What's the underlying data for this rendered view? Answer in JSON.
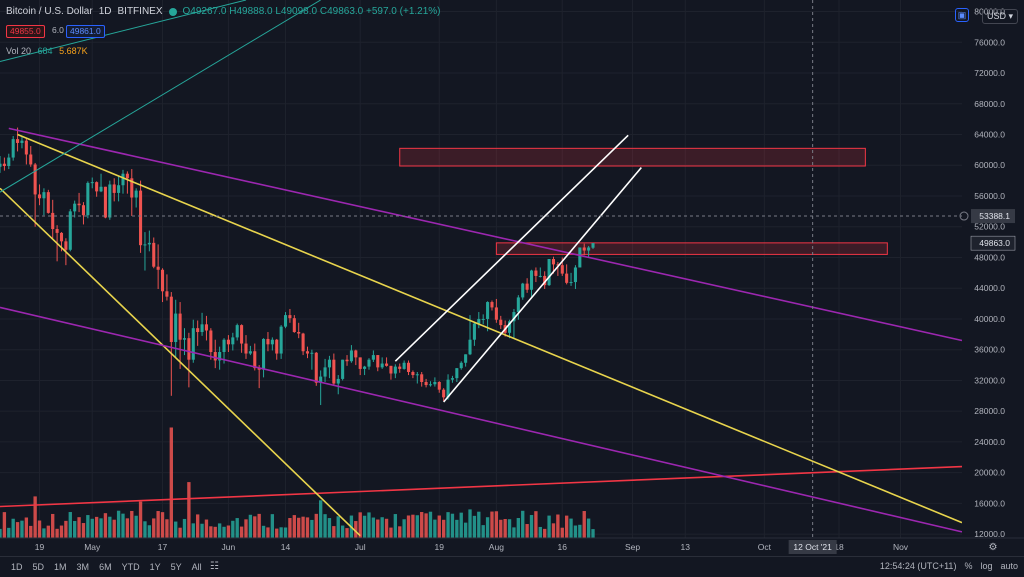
{
  "header": {
    "symbol": "Bitcoin / U.S. Dollar",
    "interval": "1D",
    "exchange": "BITFINEX",
    "ohlc": "O49267.0  H49888.0  L49098.0  C49863.0 +597.0 (+1.21%)",
    "sell_price": "49855.0",
    "spread": "6.0",
    "buy_price": "49861.0",
    "volume_label": "Vol 20",
    "volume_value": "684",
    "volume_ma": "5.687K"
  },
  "top_right": {
    "currency": "USD",
    "camera_icon": "camera-icon"
  },
  "bottom_bar": {
    "timeframes": [
      "1D",
      "5D",
      "1M",
      "3M",
      "6M",
      "YTD",
      "1Y",
      "5Y",
      "All"
    ],
    "time": "12:54:24 (UTC+11)",
    "percent": "%",
    "log": "log",
    "auto": "auto"
  },
  "chart_data": {
    "type": "candlestick",
    "x_axis": {
      "ticks": [
        {
          "label": "19",
          "date": "2021-04-19"
        },
        {
          "label": "May",
          "date": "2021-05-01"
        },
        {
          "label": "17",
          "date": "2021-05-17"
        },
        {
          "label": "Jun",
          "date": "2021-06-01"
        },
        {
          "label": "14",
          "date": "2021-06-14"
        },
        {
          "label": "Jul",
          "date": "2021-07-01"
        },
        {
          "label": "19",
          "date": "2021-07-19"
        },
        {
          "label": "Aug",
          "date": "2021-08-01"
        },
        {
          "label": "16",
          "date": "2021-08-16"
        },
        {
          "label": "Sep",
          "date": "2021-09-01"
        },
        {
          "label": "13",
          "date": "2021-09-13"
        },
        {
          "label": "Oct",
          "date": "2021-10-01"
        },
        {
          "label": "18",
          "date": "2021-10-18"
        },
        {
          "label": "Nov",
          "date": "2021-11-01"
        }
      ],
      "range": [
        "2021-04-10",
        "2021-11-15"
      ],
      "crosshair_label": "12 Oct '21",
      "crosshair_date": "2021-10-12"
    },
    "y_axis": {
      "ticks": [
        12000,
        16000,
        20000,
        24000,
        28000,
        32000,
        36000,
        40000,
        44000,
        48000,
        52000,
        56000,
        60000,
        64000,
        68000,
        72000,
        76000,
        80000
      ],
      "range": [
        11500,
        81500
      ],
      "current_price_label": "49863.0",
      "current_price": 49863,
      "crosshair_price_label": "53388.1",
      "crosshair_price": 53388
    },
    "candles": [
      [
        "2021-04-10",
        59800,
        61200,
        59000,
        60200
      ],
      [
        "2021-04-11",
        60200,
        61000,
        59300,
        59900
      ],
      [
        "2021-04-12",
        59900,
        61500,
        59500,
        61000
      ],
      [
        "2021-04-13",
        61000,
        63800,
        60600,
        63400
      ],
      [
        "2021-04-14",
        63400,
        64900,
        61800,
        62900
      ],
      [
        "2021-04-15",
        62900,
        63800,
        62200,
        63200
      ],
      [
        "2021-04-16",
        63200,
        63500,
        60100,
        61400
      ],
      [
        "2021-04-17",
        61400,
        62500,
        59800,
        60100
      ],
      [
        "2021-04-18",
        60100,
        60300,
        52000,
        56200
      ],
      [
        "2021-04-19",
        56200,
        57500,
        54800,
        55700
      ],
      [
        "2021-04-20",
        55700,
        57000,
        53500,
        56500
      ],
      [
        "2021-04-21",
        56500,
        56800,
        53700,
        53800
      ],
      [
        "2021-04-22",
        53800,
        55500,
        50500,
        51700
      ],
      [
        "2021-04-23",
        51700,
        52200,
        47500,
        51200
      ],
      [
        "2021-04-24",
        51200,
        51300,
        48800,
        50100
      ],
      [
        "2021-04-25",
        50100,
        50500,
        47000,
        49000
      ],
      [
        "2021-04-26",
        49000,
        54300,
        48800,
        54000
      ],
      [
        "2021-04-27",
        54000,
        55400,
        53200,
        55000
      ],
      [
        "2021-04-28",
        55000,
        56400,
        53900,
        54800
      ],
      [
        "2021-04-29",
        54800,
        55200,
        52300,
        53500
      ],
      [
        "2021-04-30",
        53500,
        57900,
        53100,
        57700
      ],
      [
        "2021-05-01",
        57700,
        58400,
        57000,
        57800
      ],
      [
        "2021-05-02",
        57800,
        57900,
        55900,
        56600
      ],
      [
        "2021-05-03",
        56600,
        58900,
        56500,
        57200
      ],
      [
        "2021-05-04",
        57200,
        57200,
        53100,
        53200
      ],
      [
        "2021-05-05",
        53200,
        58000,
        52900,
        57500
      ],
      [
        "2021-05-06",
        57500,
        58300,
        55300,
        56400
      ],
      [
        "2021-05-07",
        56400,
        58600,
        55300,
        57400
      ],
      [
        "2021-05-08",
        57400,
        59400,
        56300,
        58900
      ],
      [
        "2021-05-09",
        58900,
        59200,
        56300,
        58300
      ],
      [
        "2021-05-10",
        58300,
        59500,
        53400,
        55800
      ],
      [
        "2021-05-11",
        55800,
        57000,
        54500,
        56700
      ],
      [
        "2021-05-12",
        56700,
        58000,
        48600,
        49600
      ],
      [
        "2021-05-13",
        49600,
        51300,
        46300,
        49700
      ],
      [
        "2021-05-14",
        49700,
        51500,
        48800,
        49900
      ],
      [
        "2021-05-15",
        49900,
        50600,
        46600,
        46800
      ],
      [
        "2021-05-16",
        46800,
        49700,
        43900,
        46400
      ],
      [
        "2021-05-17",
        46400,
        46600,
        42200,
        43600
      ],
      [
        "2021-05-18",
        43600,
        45800,
        42400,
        42900
      ],
      [
        "2021-05-19",
        42900,
        43500,
        30000,
        37000
      ],
      [
        "2021-05-20",
        37000,
        42500,
        35000,
        40700
      ],
      [
        "2021-05-21",
        40700,
        42200,
        33500,
        37300
      ],
      [
        "2021-05-22",
        37300,
        38800,
        35300,
        37500
      ],
      [
        "2021-05-23",
        37500,
        38200,
        31100,
        34700
      ],
      [
        "2021-05-24",
        34700,
        39900,
        34300,
        38800
      ],
      [
        "2021-05-25",
        38800,
        39800,
        36500,
        38300
      ],
      [
        "2021-05-26",
        38300,
        40800,
        37800,
        39300
      ],
      [
        "2021-05-27",
        39300,
        40400,
        37200,
        38500
      ],
      [
        "2021-05-28",
        38500,
        38800,
        34700,
        35700
      ],
      [
        "2021-05-29",
        35700,
        37300,
        33600,
        34600
      ],
      [
        "2021-05-30",
        34600,
        36400,
        33400,
        35700
      ],
      [
        "2021-05-31",
        35700,
        37500,
        34200,
        37300
      ],
      [
        "2021-06-01",
        37300,
        37900,
        35700,
        36700
      ],
      [
        "2021-06-02",
        36700,
        38200,
        35900,
        37600
      ],
      [
        "2021-06-03",
        37600,
        39400,
        37200,
        39200
      ],
      [
        "2021-06-04",
        39200,
        39300,
        35600,
        36800
      ],
      [
        "2021-06-05",
        36800,
        37900,
        34800,
        35500
      ],
      [
        "2021-06-06",
        35500,
        36500,
        35300,
        35800
      ],
      [
        "2021-06-07",
        35800,
        36800,
        33300,
        33600
      ],
      [
        "2021-06-08",
        33600,
        34000,
        31000,
        33400
      ],
      [
        "2021-06-09",
        33400,
        37500,
        32400,
        37400
      ],
      [
        "2021-06-10",
        37400,
        38300,
        35800,
        36700
      ],
      [
        "2021-06-11",
        36700,
        37600,
        35900,
        37300
      ],
      [
        "2021-06-12",
        37300,
        37400,
        34700,
        35500
      ],
      [
        "2021-06-13",
        35500,
        39200,
        34800,
        39000
      ],
      [
        "2021-06-14",
        39000,
        40900,
        38800,
        40500
      ],
      [
        "2021-06-15",
        40500,
        41300,
        39500,
        40100
      ],
      [
        "2021-06-16",
        40100,
        40500,
        38200,
        38300
      ],
      [
        "2021-06-17",
        38300,
        39500,
        37500,
        38100
      ],
      [
        "2021-06-18",
        38100,
        38200,
        35300,
        35800
      ],
      [
        "2021-06-19",
        35800,
        36400,
        34900,
        35500
      ],
      [
        "2021-06-20",
        35500,
        36000,
        33400,
        35600
      ],
      [
        "2021-06-21",
        35600,
        35700,
        31300,
        31700
      ],
      [
        "2021-06-22",
        31700,
        33300,
        28800,
        32500
      ],
      [
        "2021-06-23",
        32500,
        34800,
        31800,
        33700
      ],
      [
        "2021-06-24",
        33700,
        35200,
        32300,
        34700
      ],
      [
        "2021-06-25",
        34700,
        35500,
        31300,
        31600
      ],
      [
        "2021-06-26",
        31600,
        32700,
        30200,
        32200
      ],
      [
        "2021-06-27",
        32200,
        34700,
        32000,
        34700
      ],
      [
        "2021-06-28",
        34700,
        35300,
        33900,
        34500
      ],
      [
        "2021-06-29",
        34500,
        36600,
        34300,
        35900
      ],
      [
        "2021-06-30",
        35900,
        36000,
        34000,
        35000
      ],
      [
        "2021-07-01",
        35000,
        35000,
        32700,
        33500
      ],
      [
        "2021-07-02",
        33500,
        33900,
        32700,
        33800
      ],
      [
        "2021-07-03",
        33800,
        34900,
        33400,
        34700
      ],
      [
        "2021-07-04",
        34700,
        35900,
        34400,
        35300
      ],
      [
        "2021-07-05",
        35300,
        35300,
        33200,
        33700
      ],
      [
        "2021-07-06",
        33700,
        35000,
        33500,
        34200
      ],
      [
        "2021-07-07",
        34200,
        35000,
        33800,
        33900
      ],
      [
        "2021-07-08",
        33900,
        33900,
        32100,
        32900
      ],
      [
        "2021-07-09",
        32900,
        34100,
        32300,
        33800
      ],
      [
        "2021-07-10",
        33800,
        34200,
        33000,
        33500
      ],
      [
        "2021-07-11",
        33500,
        34600,
        33400,
        34300
      ],
      [
        "2021-07-12",
        34300,
        34600,
        32700,
        33100
      ],
      [
        "2021-07-13",
        33100,
        33300,
        32300,
        32700
      ],
      [
        "2021-07-14",
        32700,
        33100,
        31600,
        32800
      ],
      [
        "2021-07-15",
        32800,
        33100,
        31200,
        31800
      ],
      [
        "2021-07-16",
        31800,
        32200,
        31100,
        31400
      ],
      [
        "2021-07-17",
        31400,
        31900,
        31200,
        31500
      ],
      [
        "2021-07-18",
        31500,
        32400,
        31200,
        31800
      ],
      [
        "2021-07-19",
        31800,
        31900,
        30400,
        30800
      ],
      [
        "2021-07-20",
        30800,
        31000,
        29300,
        29800
      ],
      [
        "2021-07-21",
        29800,
        32800,
        29500,
        32100
      ],
      [
        "2021-07-22",
        32100,
        32600,
        31700,
        32300
      ],
      [
        "2021-07-23",
        32300,
        33600,
        31800,
        33600
      ],
      [
        "2021-07-24",
        33600,
        34500,
        33400,
        34300
      ],
      [
        "2021-07-25",
        34300,
        35400,
        33800,
        35400
      ],
      [
        "2021-07-26",
        35400,
        40500,
        35300,
        37300
      ],
      [
        "2021-07-27",
        37300,
        39500,
        36500,
        39400
      ],
      [
        "2021-07-28",
        39400,
        40900,
        38800,
        40000
      ],
      [
        "2021-07-29",
        40000,
        40600,
        39300,
        40000
      ],
      [
        "2021-07-30",
        40000,
        42300,
        38400,
        42200
      ],
      [
        "2021-07-31",
        42200,
        42400,
        41100,
        41500
      ],
      [
        "2021-08-01",
        41500,
        42600,
        39500,
        39900
      ],
      [
        "2021-08-02",
        39900,
        40400,
        38700,
        39200
      ],
      [
        "2021-08-03",
        39200,
        39800,
        37700,
        38200
      ],
      [
        "2021-08-04",
        38200,
        39900,
        37500,
        39700
      ],
      [
        "2021-08-05",
        39700,
        41300,
        37400,
        40900
      ],
      [
        "2021-08-06",
        40900,
        43100,
        39900,
        42800
      ],
      [
        "2021-08-07",
        42800,
        44700,
        42500,
        44600
      ],
      [
        "2021-08-08",
        44600,
        45300,
        43400,
        43800
      ],
      [
        "2021-08-09",
        43800,
        46400,
        42900,
        46300
      ],
      [
        "2021-08-10",
        46300,
        46700,
        44800,
        45600
      ],
      [
        "2021-08-11",
        45600,
        46700,
        45400,
        45600
      ],
      [
        "2021-08-12",
        45600,
        46200,
        43900,
        44400
      ],
      [
        "2021-08-13",
        44400,
        47800,
        44300,
        47800
      ],
      [
        "2021-08-14",
        47800,
        48100,
        45900,
        47100
      ],
      [
        "2021-08-15",
        47100,
        47400,
        45600,
        47000
      ],
      [
        "2021-08-16",
        47000,
        48000,
        45600,
        45900
      ],
      [
        "2021-08-17",
        45900,
        47100,
        44500,
        44700
      ],
      [
        "2021-08-18",
        44700,
        46000,
        44300,
        44800
      ],
      [
        "2021-08-19",
        44800,
        47000,
        43900,
        46700
      ],
      [
        "2021-08-20",
        46700,
        49300,
        46700,
        49300
      ],
      [
        "2021-08-21",
        49300,
        49800,
        48300,
        48900
      ],
      [
        "2021-08-22",
        48900,
        49500,
        48100,
        49300
      ],
      [
        "2021-08-23",
        49267,
        49888,
        49098,
        49863
      ]
    ],
    "volume": [
      {
        "date": "2021-04-18",
        "value": 3.2
      },
      {
        "date": "2021-05-12",
        "value": 2.8
      },
      {
        "date": "2021-05-19",
        "value": 8.5
      },
      {
        "date": "2021-05-23",
        "value": 4.3
      },
      {
        "date": "2021-06-22",
        "value": 2.9
      },
      {
        "date": "2021-07-20",
        "value": 1.4
      },
      {
        "date": "2021-07-26",
        "value": 2.2
      },
      {
        "date": "2021-08-23",
        "value": 0.684
      }
    ],
    "volume_ma_value": "5.687K",
    "drawings": [
      {
        "name": "red-support-line",
        "color": "#f23645",
        "from": [
          "2021-04-10",
          15600
        ],
        "to": [
          "2021-11-15",
          20800
        ]
      },
      {
        "name": "yellow-trend-line-upper",
        "color": "#e8d44d",
        "from": [
          "2021-04-14",
          64000
        ],
        "to": [
          "2021-11-15",
          13500
        ]
      },
      {
        "name": "yellow-trend-line-lower",
        "color": "#e8d44d",
        "from": [
          "2021-04-10",
          57000
        ],
        "to": [
          "2021-07-01",
          11800
        ]
      },
      {
        "name": "purple-channel-upper",
        "color": "#9c27b0",
        "from": [
          "2021-04-12",
          64800
        ],
        "to": [
          "2021-11-15",
          37200
        ]
      },
      {
        "name": "purple-channel-lower",
        "color": "#9c27b0",
        "from": [
          "2021-04-10",
          41500
        ],
        "to": [
          "2021-11-15",
          12300
        ]
      },
      {
        "name": "white-channel-upper",
        "color": "#ffffff",
        "from": [
          "2021-07-09",
          34500
        ],
        "to": [
          "2021-08-31",
          63900
        ]
      },
      {
        "name": "white-channel-lower",
        "color": "#ffffff",
        "from": [
          "2021-07-20",
          29200
        ],
        "to": [
          "2021-09-03",
          59700
        ]
      },
      {
        "name": "green-line-outer",
        "color": "#26a69a",
        "from": [
          "2021-04-10",
          73500
        ],
        "to": [
          "2021-06-05",
          81500
        ]
      },
      {
        "name": "green-line-inner",
        "color": "#26a69a",
        "from": [
          "2021-04-10",
          56500
        ],
        "to": [
          "2021-06-22",
          81500
        ]
      }
    ],
    "zones": [
      {
        "name": "upper-resistance-zone",
        "from": "2021-07-10",
        "to": "2021-10-24",
        "low": 59900,
        "high": 62200
      },
      {
        "name": "lower-resistance-zone",
        "from": "2021-08-01",
        "to": "2021-10-29",
        "low": 48400,
        "high": 49900
      }
    ]
  }
}
